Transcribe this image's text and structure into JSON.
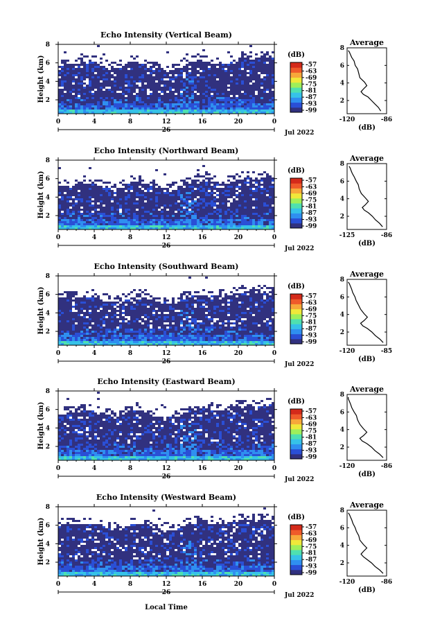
{
  "figure": {
    "xlabel": "Local Time",
    "colorbar_unit": "(dB)",
    "colorbar_ticks": [
      "-57",
      "-63",
      "-69",
      "-75",
      "-81",
      "-87",
      "-93",
      "-99"
    ],
    "colorscale": [
      "#31317f",
      "#2a4fd6",
      "#2f8ff0",
      "#36c2e8",
      "#4fe0b0",
      "#9fef5a",
      "#f0e83a",
      "#f7a83a",
      "#ef5a2a",
      "#d42a1a"
    ],
    "background_color": "#ffffff"
  },
  "chart_data": [
    {
      "type": "heatmap",
      "title": "Echo Intensity (Vertical Beam)",
      "ylabel": "Height (km)",
      "ylim": [
        0.5,
        8
      ],
      "yticks": [
        "2",
        "4",
        "6",
        "8"
      ],
      "xlim": [
        0,
        24
      ],
      "xticks": [
        "0",
        "4",
        "8",
        "12",
        "16",
        "20",
        "0"
      ],
      "date_label": "26",
      "month_label": "Jul 2022",
      "colorbar_range": [
        -99,
        -57
      ],
      "echo_top_km": [
        5.6,
        5.7,
        5.8,
        6.0,
        5.9,
        5.6,
        5.2,
        5.4,
        5.8,
        6.0,
        5.6,
        5.3,
        5.2,
        5.0,
        5.6,
        6.0,
        6.1,
        5.9,
        5.7,
        5.9,
        6.2,
        6.4,
        6.2,
        6.4,
        6.5
      ]
    },
    {
      "type": "line",
      "title": "Average",
      "xlabel": "(dB)",
      "xlim": [
        -120,
        -86
      ],
      "xticks": [
        "-120",
        "-86"
      ],
      "ylim": [
        0.5,
        8
      ],
      "yticks": [
        "2",
        "4",
        "6",
        "8"
      ],
      "series": [
        {
          "x": [
            -91,
            -93,
            -96,
            -99,
            -102,
            -106,
            -108,
            -106,
            -103,
            -105,
            -109,
            -110,
            -111,
            -113,
            -114,
            -116,
            -117,
            -118,
            -119
          ],
          "y": [
            0.8,
            1.2,
            1.6,
            2.0,
            2.4,
            2.7,
            3.0,
            3.3,
            3.7,
            4.1,
            4.6,
            5.1,
            5.6,
            6.0,
            6.5,
            6.9,
            7.2,
            7.5,
            7.7
          ]
        }
      ]
    },
    {
      "type": "heatmap",
      "title": "Echo Intensity (Northward Beam)",
      "ylabel": "Height (km)",
      "ylim": [
        0.5,
        8
      ],
      "yticks": [
        "2",
        "4",
        "6",
        "8"
      ],
      "xlim": [
        0,
        24
      ],
      "xticks": [
        "0",
        "4",
        "8",
        "12",
        "16",
        "20",
        "0"
      ],
      "date_label": "26",
      "month_label": "Jul 2022",
      "colorbar_range": [
        -99,
        -57
      ],
      "echo_top_km": [
        5.0,
        5.2,
        5.1,
        5.4,
        5.3,
        5.0,
        4.7,
        4.9,
        5.3,
        5.6,
        5.2,
        4.9,
        4.8,
        4.7,
        5.2,
        5.5,
        5.7,
        5.6,
        5.4,
        5.6,
        5.8,
        6.0,
        5.8,
        6.0,
        6.1
      ]
    },
    {
      "type": "line",
      "title": "Average",
      "xlabel": "(dB)",
      "xlim": [
        -125,
        -86
      ],
      "xticks": [
        "-125",
        "-86"
      ],
      "ylim": [
        0.5,
        8
      ],
      "yticks": [
        "2",
        "4",
        "6",
        "8"
      ],
      "series": [
        {
          "x": [
            -90,
            -93,
            -97,
            -100,
            -104,
            -108,
            -110,
            -107,
            -104,
            -107,
            -111,
            -113,
            -114,
            -116,
            -118,
            -120,
            -121,
            -122,
            -123
          ],
          "y": [
            0.8,
            1.2,
            1.6,
            2.0,
            2.4,
            2.7,
            3.0,
            3.3,
            3.7,
            4.1,
            4.6,
            5.1,
            5.6,
            6.0,
            6.5,
            6.9,
            7.2,
            7.5,
            7.7
          ]
        }
      ]
    },
    {
      "type": "heatmap",
      "title": "Echo Intensity (Southward Beam)",
      "ylabel": "Height (km)",
      "ylim": [
        0.5,
        8
      ],
      "yticks": [
        "2",
        "4",
        "6",
        "8"
      ],
      "xlim": [
        0,
        24
      ],
      "xticks": [
        "0",
        "4",
        "8",
        "12",
        "16",
        "20",
        "0"
      ],
      "date_label": "26",
      "month_label": "Jul 2022",
      "colorbar_range": [
        -99,
        -57
      ],
      "echo_top_km": [
        5.3,
        5.5,
        5.4,
        5.6,
        5.6,
        5.3,
        5.0,
        5.1,
        5.5,
        5.8,
        5.4,
        5.1,
        5.0,
        4.9,
        5.4,
        5.7,
        5.9,
        5.8,
        5.6,
        5.8,
        6.0,
        6.2,
        6.0,
        6.2,
        6.3
      ]
    },
    {
      "type": "line",
      "title": "Average",
      "xlabel": "(dB)",
      "xlim": [
        -120,
        -85
      ],
      "xticks": [
        "-120",
        "-85"
      ],
      "ylim": [
        0.5,
        8
      ],
      "yticks": [
        "2",
        "4",
        "6",
        "8"
      ],
      "series": [
        {
          "x": [
            -88,
            -91,
            -95,
            -98,
            -102,
            -106,
            -108,
            -105,
            -102,
            -105,
            -108,
            -110,
            -112,
            -113,
            -115,
            -116,
            -117,
            -118,
            -119
          ],
          "y": [
            0.8,
            1.2,
            1.6,
            2.0,
            2.4,
            2.7,
            3.0,
            3.3,
            3.7,
            4.1,
            4.6,
            5.1,
            5.6,
            6.0,
            6.5,
            6.9,
            7.2,
            7.5,
            7.7
          ]
        }
      ]
    },
    {
      "type": "heatmap",
      "title": "Echo Intensity (Eastward Beam)",
      "ylabel": "Height (km)",
      "ylim": [
        0.5,
        8
      ],
      "yticks": [
        "2",
        "4",
        "6",
        "8"
      ],
      "xlim": [
        0,
        24
      ],
      "xticks": [
        "0",
        "4",
        "8",
        "12",
        "16",
        "20",
        "0"
      ],
      "date_label": "26",
      "month_label": "Jul 2022",
      "colorbar_range": [
        -99,
        -57
      ],
      "echo_top_km": [
        5.4,
        5.6,
        5.5,
        5.8,
        5.7,
        5.4,
        5.1,
        5.3,
        5.6,
        5.9,
        5.5,
        5.2,
        5.1,
        5.0,
        5.5,
        5.8,
        6.0,
        5.9,
        5.7,
        5.9,
        6.1,
        6.3,
        6.1,
        6.3,
        6.4
      ]
    },
    {
      "type": "line",
      "title": "Average",
      "xlabel": "(dB)",
      "xlim": [
        -120,
        -86
      ],
      "xticks": [
        "-120",
        "-86"
      ],
      "ylim": [
        0.5,
        8
      ],
      "yticks": [
        "2",
        "4",
        "6",
        "8"
      ],
      "series": [
        {
          "x": [
            -89,
            -92,
            -96,
            -99,
            -103,
            -107,
            -109,
            -106,
            -103,
            -106,
            -109,
            -111,
            -112,
            -114,
            -116,
            -117,
            -118,
            -119,
            -119
          ],
          "y": [
            0.8,
            1.2,
            1.6,
            2.0,
            2.4,
            2.7,
            3.0,
            3.3,
            3.7,
            4.1,
            4.6,
            5.1,
            5.6,
            6.0,
            6.5,
            6.9,
            7.2,
            7.5,
            7.7
          ]
        }
      ]
    },
    {
      "type": "heatmap",
      "title": "Echo Intensity (Westward Beam)",
      "ylabel": "Height (km)",
      "ylim": [
        0.5,
        8
      ],
      "yticks": [
        "2",
        "4",
        "6",
        "8"
      ],
      "xlim": [
        0,
        24
      ],
      "xticks": [
        "0",
        "4",
        "8",
        "12",
        "16",
        "20",
        "0"
      ],
      "date_label": "26",
      "month_label": "Jul 2022",
      "colorbar_range": [
        -99,
        -57
      ],
      "echo_top_km": [
        5.8,
        6.0,
        5.9,
        6.1,
        6.0,
        5.7,
        5.4,
        5.6,
        5.9,
        6.1,
        5.8,
        5.5,
        5.4,
        5.3,
        5.8,
        6.1,
        6.2,
        6.1,
        5.9,
        6.1,
        6.3,
        6.5,
        6.3,
        6.5,
        6.6
      ]
    },
    {
      "type": "line",
      "title": "Average",
      "xlabel": "(dB)",
      "xlim": [
        -120,
        -86
      ],
      "xticks": [
        "-120",
        "-86"
      ],
      "ylim": [
        0.5,
        8
      ],
      "yticks": [
        "2",
        "4",
        "6",
        "8"
      ],
      "series": [
        {
          "x": [
            -89,
            -92,
            -96,
            -99,
            -103,
            -106,
            -108,
            -106,
            -103,
            -106,
            -109,
            -110,
            -112,
            -113,
            -115,
            -116,
            -117,
            -118,
            -119
          ],
          "y": [
            0.8,
            1.2,
            1.6,
            2.0,
            2.4,
            2.7,
            3.0,
            3.3,
            3.7,
            4.1,
            4.6,
            5.1,
            5.6,
            6.0,
            6.5,
            6.9,
            7.2,
            7.5,
            7.7
          ]
        }
      ]
    }
  ]
}
